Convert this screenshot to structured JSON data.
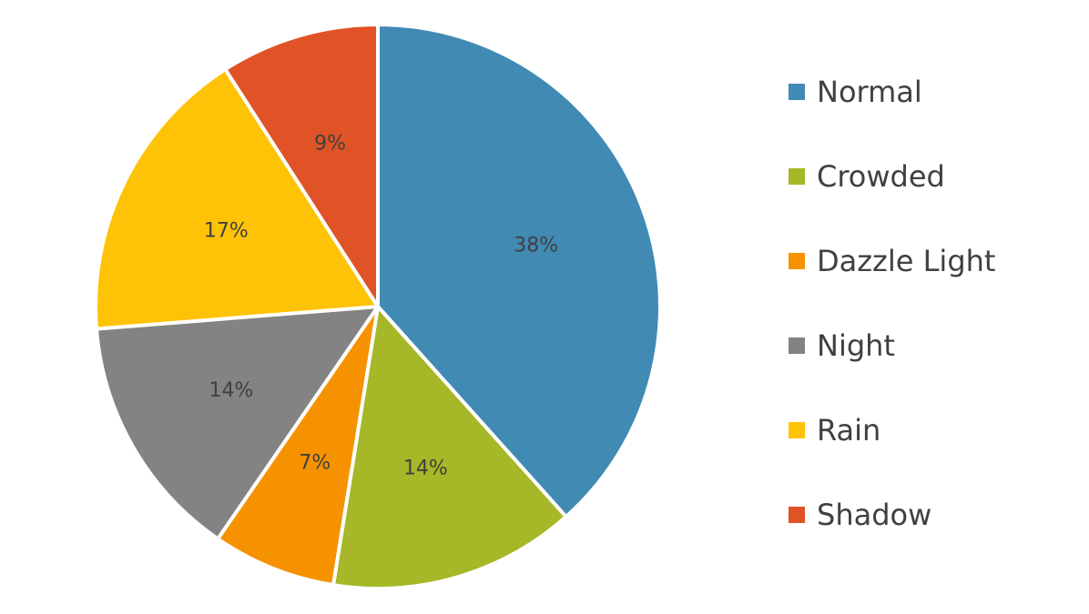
{
  "chart_data": {
    "type": "pie",
    "categories": [
      "Normal",
      "Crowded",
      "Dazzle Light",
      "Night",
      "Rain",
      "Shadow"
    ],
    "values": [
      38,
      14,
      7,
      14,
      17,
      9
    ],
    "value_labels": [
      "38%",
      "14%",
      "7%",
      "14%",
      "17%",
      "9%"
    ],
    "colors": [
      "#418ab3",
      "#a6b727",
      "#f69200",
      "#838383",
      "#fec306",
      "#df5327"
    ],
    "legend": "right"
  }
}
